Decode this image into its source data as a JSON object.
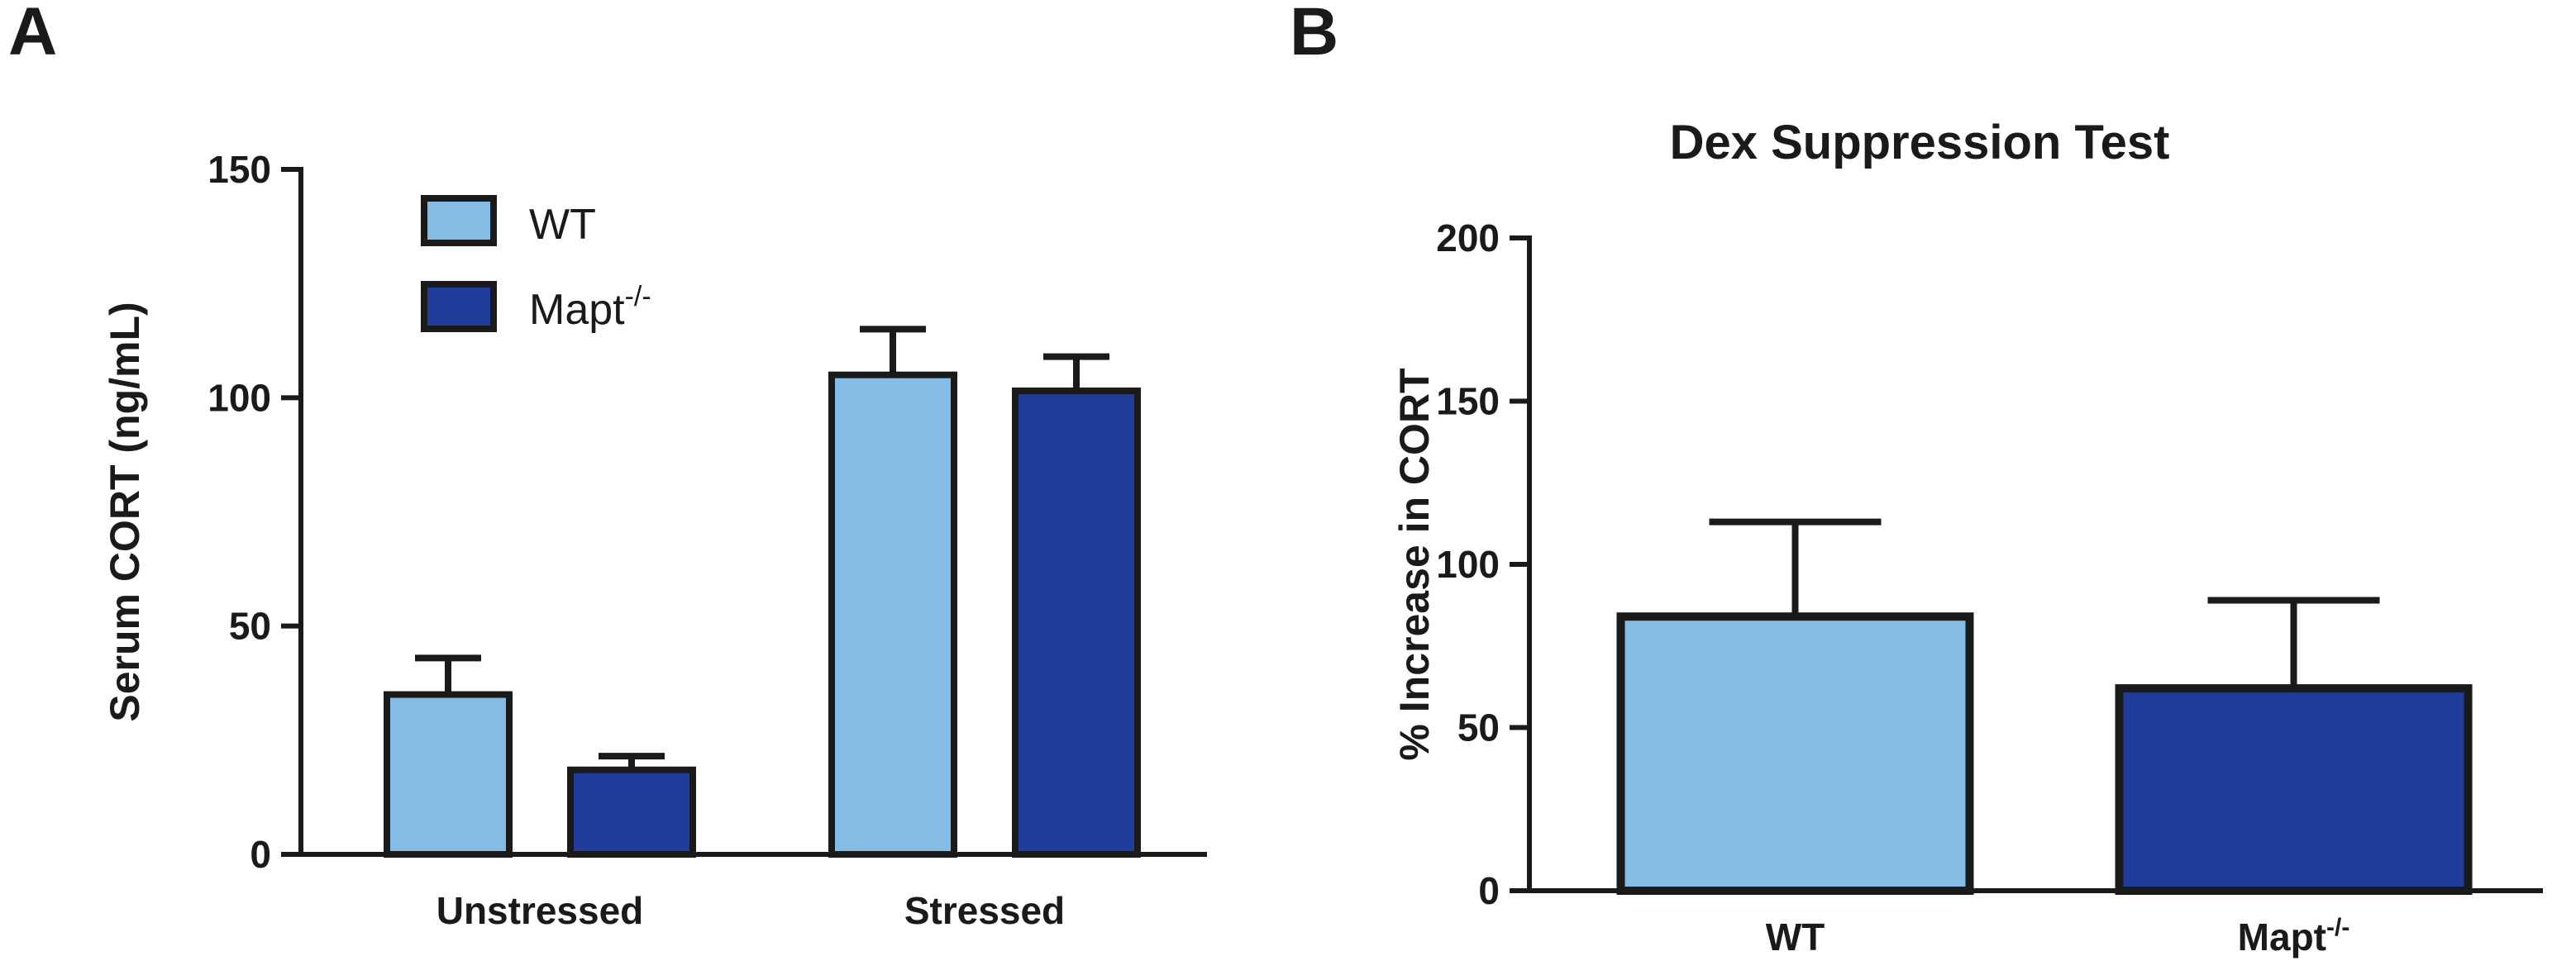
{
  "chart_data": [
    {
      "panel_label": "A",
      "type": "bar",
      "title": "",
      "ylabel": "Serum CORT (ng/mL)",
      "xlabel": "",
      "ylim": [
        0,
        150
      ],
      "yticks": [
        0,
        50,
        100,
        150
      ],
      "categories": [
        "Unstressed",
        "Stressed"
      ],
      "legend": {
        "placement": "top-left"
      },
      "series": [
        {
          "name": "WT",
          "color": "#85bce6",
          "values": [
            35,
            105
          ],
          "errors": [
            8,
            10
          ]
        },
        {
          "name": "Mapt",
          "name_sup": "-/-",
          "color": "#213d9c",
          "values": [
            18.5,
            101.5
          ],
          "errors": [
            3,
            7.5
          ]
        }
      ]
    },
    {
      "panel_label": "B",
      "type": "bar",
      "title": "Dex Suppression Test",
      "ylabel": "% Increase in CORT",
      "xlabel": "",
      "ylim": [
        0,
        200
      ],
      "yticks": [
        0,
        50,
        100,
        150,
        200
      ],
      "categories": [
        {
          "label": "WT",
          "sup": ""
        },
        {
          "label": "Mapt",
          "sup": "-/-"
        }
      ],
      "colors": [
        "#85bce6",
        "#213d9c"
      ],
      "values": [
        84,
        62
      ],
      "errors": [
        29,
        27
      ]
    }
  ]
}
